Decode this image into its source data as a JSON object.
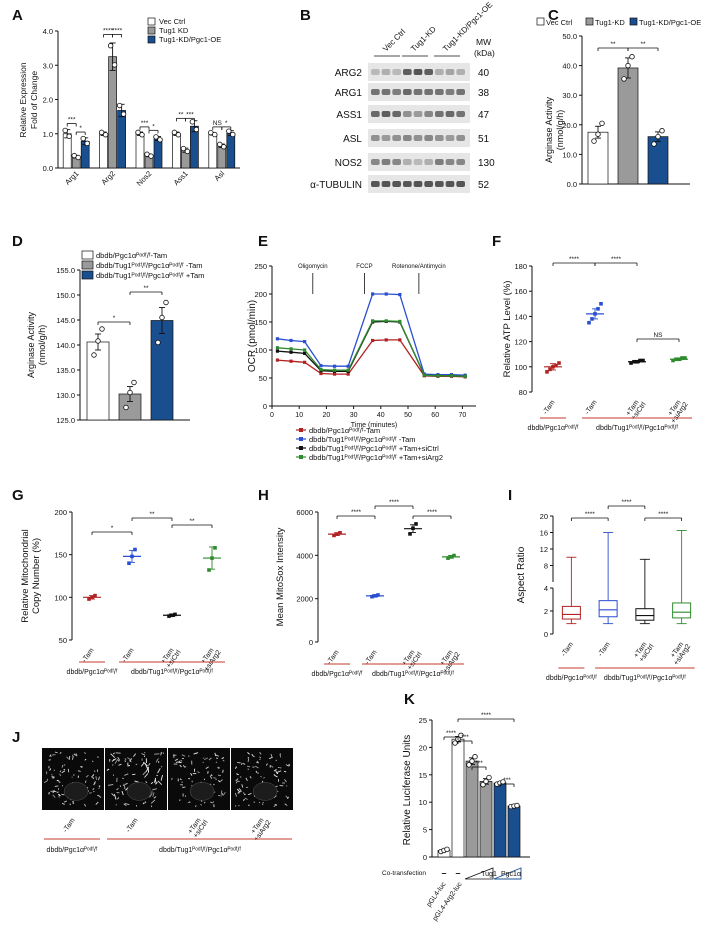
{
  "panels": {
    "A": {
      "letter": "A",
      "ylabel": [
        "Relative Expression",
        "Fold of Change"
      ],
      "legend": [
        "Vec Ctrl",
        "Tug1 KD",
        "Tug1-KD/Pgc1-OE"
      ],
      "colors": [
        "#ffffff",
        "#9a9a9a",
        "#1a4f8f"
      ],
      "yticks": [
        "0.0",
        "1.0",
        "2.0",
        "3.0",
        "4.0"
      ],
      "ylim": [
        0,
        4
      ],
      "categories": [
        "Arg1",
        "Arg2",
        "Nos2",
        "Ass1",
        "Asl"
      ],
      "series": [
        {
          "values": [
            1.0,
            1.0,
            1.0,
            1.0,
            1.0
          ]
        },
        {
          "values": [
            0.33,
            3.25,
            0.37,
            0.52,
            0.65
          ]
        },
        {
          "values": [
            0.78,
            1.68,
            0.86,
            1.22,
            1.02
          ]
        }
      ],
      "errors": [
        [
          0.12,
          0.05,
          0.05,
          0.05,
          0.04
        ],
        [
          0.04,
          0.4,
          0.04,
          0.06,
          0.05
        ],
        [
          0.1,
          0.18,
          0.06,
          0.16,
          0.07
        ]
      ],
      "sig": [
        {
          "label": "***",
          "x1": 0,
          "a": 0,
          "x2": 0,
          "b": 1,
          "y": 1.3
        },
        {
          "label": "*",
          "x1": 0,
          "a": 1,
          "x2": 0,
          "b": 2,
          "y": 1.05
        },
        {
          "label": "****",
          "x1": 1,
          "a": 0,
          "x2": 1,
          "b": 1,
          "y": 3.9
        },
        {
          "label": "****",
          "x1": 1,
          "a": 1,
          "x2": 1,
          "b": 2,
          "y": 3.9
        },
        {
          "label": "***",
          "x1": 2,
          "a": 0,
          "x2": 2,
          "b": 1,
          "y": 1.2
        },
        {
          "label": "*",
          "x1": 2,
          "a": 1,
          "x2": 2,
          "b": 2,
          "y": 1.1
        },
        {
          "label": "**",
          "x1": 3,
          "a": 0,
          "x2": 3,
          "b": 1,
          "y": 1.45
        },
        {
          "label": "***",
          "x1": 3,
          "a": 1,
          "x2": 3,
          "b": 2,
          "y": 1.45
        },
        {
          "label": "NS",
          "x1": 4,
          "a": 0,
          "x2": 4,
          "b": 1,
          "y": 1.2
        },
        {
          "label": "*",
          "x1": 4,
          "a": 1,
          "x2": 4,
          "b": 2,
          "y": 1.2
        }
      ]
    },
    "B": {
      "letter": "B",
      "lanes": [
        "Vec Ctrl",
        "Tug1-KD",
        "Tug1-KD/Pgc1-OE"
      ],
      "mw_header": [
        "MW",
        "(kDa)"
      ],
      "proteins": [
        "ARG2",
        "ARG1",
        "ASS1",
        "ASL",
        "NOS2",
        "α-TUBULIN"
      ],
      "mw": [
        "40",
        "38",
        "47",
        "51",
        "130",
        "52"
      ]
    },
    "C": {
      "letter": "C",
      "legend": [
        "Vec Ctrl",
        "Tug1-KD",
        "Tug1-KD/Pgc1-OE"
      ],
      "ylabel": [
        "Arginase Activity",
        "(nmol/g/h)"
      ],
      "yticks": [
        "0.0",
        "10.0",
        "20.0",
        "30.0",
        "40.0",
        "50.0"
      ],
      "ylim": [
        0,
        50
      ],
      "values": [
        17.5,
        39.2,
        16.0
      ],
      "errors": [
        2.0,
        3.4,
        1.6
      ],
      "points": [
        [
          14.5,
          16.8,
          20.5
        ],
        [
          35.5,
          40.0,
          43.0
        ],
        [
          13.5,
          16.0,
          18.0
        ]
      ],
      "sig": [
        "**",
        "**"
      ]
    },
    "D": {
      "letter": "D",
      "legend": [
        "dbdb/Pgc1αᴾᵒᵈᶠ/ᶠ-Tam",
        "dbdb/Tug1ᴾᵒᵈᶠ/ᶠ/Pgc1αᴾᵒᵈᶠ/ᶠ -Tam",
        "dbdb/Tug1ᴾᵒᵈᶠ/ᶠ/Pgc1αᴾᵒᵈᶠ/ᶠ +Tam"
      ],
      "ylabel": [
        "Arginase Activity",
        "(nmol/g/h)"
      ],
      "yticks": [
        "125.0",
        "130.0",
        "135.0",
        "140.0",
        "145.0",
        "150.0",
        "155.0"
      ],
      "ylim": [
        125,
        155
      ],
      "values": [
        140.6,
        130.2,
        144.9
      ],
      "errors": [
        1.6,
        1.5,
        2.6
      ],
      "points": [
        [
          138.0,
          140.8,
          143.2
        ],
        [
          127.5,
          130.5,
          132.5
        ],
        [
          140.5,
          145.5,
          148.5
        ]
      ],
      "sig": [
        "*",
        "**"
      ]
    },
    "E": {
      "letter": "E",
      "ylabel": "OCR (pmol/min)",
      "xlabel": "Time (minutes)",
      "xticks": [
        "0",
        "10",
        "20",
        "30",
        "40",
        "50",
        "60",
        "70"
      ],
      "yticks": [
        "0",
        "50",
        "100",
        "150",
        "200",
        "250"
      ],
      "xlim": [
        0,
        75
      ],
      "ylim": [
        0,
        250
      ],
      "annotations": [
        {
          "label": "Oligomycin",
          "x": 15
        },
        {
          "label": "FCCP",
          "x": 34
        },
        {
          "label": "Rotenone/Antimycin",
          "x": 54
        }
      ],
      "x": [
        2,
        7,
        12,
        18,
        23,
        28,
        37,
        42,
        47,
        56,
        61,
        66,
        71
      ],
      "series": [
        {
          "name": "dbdb/Pgc1αᴾᵒᵈᶠ/ᶠ-Tam",
          "color": "#b22222",
          "values": [
            82,
            80,
            78,
            58,
            57,
            57,
            117,
            118,
            118,
            54,
            53,
            53,
            52
          ]
        },
        {
          "name": "dbdb/Tug1ᴾᵒᵈᶠ/ᶠ/Pgc1αᴾᵒᵈᶠ/ᶠ -Tam",
          "color": "#2a4fd0",
          "values": [
            120,
            117,
            115,
            72,
            71,
            71,
            200,
            200,
            199,
            57,
            56,
            56,
            55
          ]
        },
        {
          "name": "dbdb/Tug1ᴾᵒᵈᶠ/ᶠ/Pgc1αᴾᵒᵈᶠ/ᶠ +Tam+siCtrl",
          "color": "#111111",
          "values": [
            98,
            96,
            94,
            63,
            62,
            62,
            150,
            151,
            150,
            55,
            54,
            54,
            53
          ]
        },
        {
          "name": "dbdb/Tug1ᴾᵒᵈᶠ/ᶠ/Pgc1αᴾᵒᵈᶠ/ᶠ +Tam+siArg2",
          "color": "#2e8b2e",
          "values": [
            104,
            102,
            100,
            65,
            64,
            64,
            152,
            152,
            151,
            55,
            54,
            54,
            53
          ]
        }
      ]
    },
    "F": {
      "letter": "F",
      "ylabel": "Relative ATP Level (%)",
      "yticks": [
        "80",
        "100",
        "120",
        "140",
        "160",
        "180"
      ],
      "ylim": [
        80,
        180
      ],
      "groups": [
        "-Tam",
        "-Tam",
        "+Tam +siCtrl",
        "+Tam +siArg2"
      ],
      "colors": [
        "#b22222",
        "#2a4fd0",
        "#111111",
        "#2e8b2e"
      ],
      "values": [
        100,
        142,
        104,
        106
      ],
      "errors": [
        2.5,
        4.0,
        0.8,
        0.8
      ],
      "points": [
        [
          96,
          98,
          100,
          101,
          103
        ],
        [
          135,
          138,
          142,
          146,
          150
        ],
        [
          103,
          104,
          104,
          105,
          105
        ],
        [
          105,
          106,
          106,
          107,
          107
        ]
      ],
      "sig": [
        "****",
        "****",
        "NS"
      ],
      "genotype_labels": [
        "dbdb/Pgc1αᴾᵒᵈᶠ/ᶠ",
        "dbdb/Tug1ᴾᵒᵈᶠ/ᶠ/Pgc1αᴾᵒᵈᶠ/ᶠ"
      ]
    },
    "G": {
      "letter": "G",
      "ylabel": [
        "Relative Mitochondrial",
        "Copy Number (%)"
      ],
      "yticks": [
        "50",
        "100",
        "150",
        "200"
      ],
      "ylim": [
        50,
        200
      ],
      "groups": [
        "-Tam",
        "-Tam",
        "+Tam +siCtrl",
        "+Tam +siArg2"
      ],
      "colors": [
        "#b22222",
        "#2a4fd0",
        "#111111",
        "#2e8b2e"
      ],
      "values": [
        100,
        148,
        79,
        146
      ],
      "errors": [
        2.0,
        7.0,
        1.5,
        13.0
      ],
      "points": [
        [
          98,
          100,
          102
        ],
        [
          140,
          148,
          156
        ],
        [
          78,
          79,
          80
        ],
        [
          132,
          146,
          158
        ]
      ],
      "sig": [
        "*",
        "**",
        "**"
      ],
      "genotype_labels": [
        "dbdb/Pgc1αᴾᵒᵈᶠ/ᶠ",
        "dbdb/Tug1ᴾᵒᵈᶠ/ᶠ/Pgc1αᴾᵒᵈᶠ/ᶠ"
      ]
    },
    "H": {
      "letter": "H",
      "ylabel": "Mean MitoSox Intensity",
      "yticks": [
        "0",
        "2000",
        "4000",
        "6000"
      ],
      "ylim": [
        0,
        6000
      ],
      "groups": [
        "-Tam",
        "-Tam",
        "+Tam +siCtrl",
        "+Tam +siArg2"
      ],
      "colors": [
        "#b22222",
        "#2a4fd0",
        "#111111",
        "#2e8b2e"
      ],
      "values": [
        4980,
        2130,
        5230,
        3930
      ],
      "errors": [
        60,
        50,
        180,
        60
      ],
      "points": [
        [
          4920,
          4980,
          5040
        ],
        [
          2090,
          2130,
          2170
        ],
        [
          4990,
          5250,
          5450
        ],
        [
          3870,
          3930,
          3990
        ]
      ],
      "sig": [
        "****",
        "****",
        "****"
      ],
      "genotype_labels": [
        "dbdb/Pgc1αᴾᵒᵈᶠ/ᶠ",
        "dbdb/Tug1ᴾᵒᵈᶠ/ᶠ/Pgc1αᴾᵒᵈᶠ/ᶠ"
      ]
    },
    "I": {
      "letter": "I",
      "ylabel": "Aspect Ratio",
      "yticks_low": [
        "0",
        "2",
        "4"
      ],
      "yticks_high": [
        "8",
        "12",
        "16",
        "20"
      ],
      "groups": [
        "-Tam",
        "-Tam",
        "+Tam +siCtrl",
        "+Tam +siArg2"
      ],
      "colors": [
        "#b22222",
        "#2a4fd0",
        "#111111",
        "#2e8b2e"
      ],
      "boxes": [
        {
          "min": 0.9,
          "q1": 1.3,
          "median": 1.7,
          "q3": 2.4,
          "max": 10.0
        },
        {
          "min": 0.9,
          "q1": 1.5,
          "median": 2.1,
          "q3": 2.9,
          "max": 16.0
        },
        {
          "min": 0.9,
          "q1": 1.2,
          "median": 1.6,
          "q3": 2.2,
          "max": 9.5
        },
        {
          "min": 0.9,
          "q1": 1.4,
          "median": 1.9,
          "q3": 2.7,
          "max": 16.5
        }
      ],
      "sig": [
        "****",
        "****",
        "****"
      ],
      "genotype_labels": [
        "dbdb/Pgc1αᴾᵒᵈᶠ/ᶠ",
        "dbdb/Tug1ᴾᵒᵈᶠ/ᶠ/Pgc1αᴾᵒᵈᶠ/ᶠ"
      ]
    },
    "J": {
      "letter": "J",
      "conditions": [
        "-Tam",
        "-Tam",
        "+Tam +siCtrl",
        "+Tam +siArg2"
      ],
      "genotype_labels": [
        "dbdb/Pgc1αᴾᵒᵈᶠ/ᶠ",
        "dbdb/Tug1ᴾᵒᵈᶠ/ᶠ/Pgc1αᴾᵒᵈᶠ/ᶠ"
      ]
    },
    "K": {
      "letter": "K",
      "ylabel": "Relative Luciferase Units",
      "yticks": [
        "0",
        "5",
        "10",
        "15",
        "20",
        "25"
      ],
      "ylim": [
        0,
        25
      ],
      "colors": [
        "#ffffff",
        "#ffffff",
        "#9a9a9a",
        "#9a9a9a",
        "#1a4f8f",
        "#1a4f8f"
      ],
      "values": [
        1.2,
        21.5,
        17.5,
        13.8,
        13.5,
        9.3
      ],
      "errors": [
        0.2,
        0.5,
        0.6,
        0.5,
        0.2,
        0.1
      ],
      "points": [
        [
          1.0,
          1.2,
          1.4
        ],
        [
          20.8,
          21.5,
          22.2
        ],
        [
          16.8,
          17.5,
          18.3
        ],
        [
          13.2,
          13.8,
          14.5
        ],
        [
          13.3,
          13.5,
          13.7
        ],
        [
          9.2,
          9.3,
          9.4
        ]
      ],
      "sig": [
        "****",
        "***",
        "****",
        "***",
        "***"
      ],
      "cotransfection_label": "Co-transfection",
      "dash": "–",
      "tug1": "Tug1",
      "pgc1": "Pgc1α",
      "reporters": [
        "pGL4-luc",
        "pGL4-Arg2-luc"
      ]
    }
  }
}
